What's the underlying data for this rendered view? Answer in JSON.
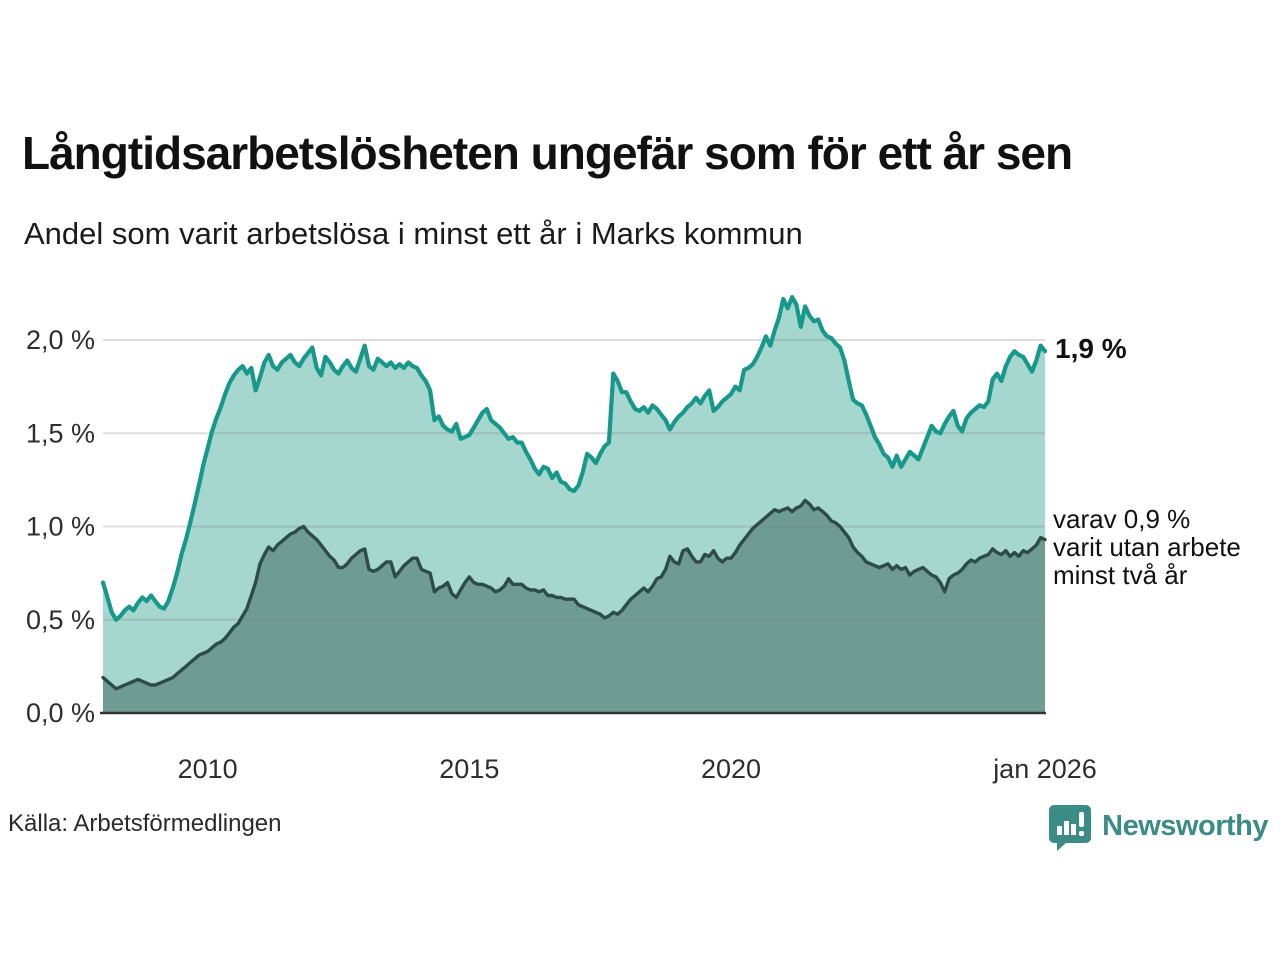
{
  "title": "Långtidsarbetslösheten ungefär som för ett år sen",
  "subtitle": "Andel som varit arbetslösa i minst ett år i Marks kommun",
  "source": "Källa: Arbetsförmedlingen",
  "branding": {
    "name": "Newsworthy",
    "color": "#3b8c84"
  },
  "annotations": {
    "latest_label": "1,9 %",
    "secondary_line1": "varav 0,9 %",
    "secondary_line2": "varit utan arbete",
    "secondary_line3": "minst två år"
  },
  "chart_data": {
    "type": "area",
    "frequency": "monthly",
    "start_month": "2008-01",
    "end_month": "2026-01",
    "x_ticks": [
      {
        "label": "2010",
        "t": 2010
      },
      {
        "label": "2015",
        "t": 2015
      },
      {
        "label": "2020",
        "t": 2020
      },
      {
        "label": "jan 2026",
        "t": 2026
      }
    ],
    "y_ticks": [
      {
        "label": "2,0 %",
        "v": 2.0
      },
      {
        "label": "1,5 %",
        "v": 1.5
      },
      {
        "label": "1,0 %",
        "v": 1.0
      },
      {
        "label": "0,5 %",
        "v": 0.5
      },
      {
        "label": "0,0 %",
        "v": 0.0
      }
    ],
    "ylim": [
      0,
      2.35
    ],
    "grid": true,
    "series": [
      {
        "name": "Arbetslösa minst ett år",
        "line_color": "#17988a",
        "fill_color": "#a6d7cf",
        "latest_value": 1.9,
        "values": [
          0.7,
          0.62,
          0.54,
          0.5,
          0.52,
          0.55,
          0.57,
          0.55,
          0.59,
          0.62,
          0.6,
          0.63,
          0.6,
          0.57,
          0.56,
          0.6,
          0.67,
          0.75,
          0.85,
          0.93,
          1.02,
          1.12,
          1.22,
          1.33,
          1.42,
          1.51,
          1.58,
          1.64,
          1.71,
          1.77,
          1.81,
          1.84,
          1.86,
          1.82,
          1.85,
          1.73,
          1.8,
          1.88,
          1.92,
          1.86,
          1.84,
          1.88,
          1.9,
          1.92,
          1.88,
          1.86,
          1.9,
          1.93,
          1.96,
          1.85,
          1.81,
          1.91,
          1.88,
          1.84,
          1.82,
          1.86,
          1.89,
          1.85,
          1.83,
          1.9,
          1.97,
          1.86,
          1.84,
          1.9,
          1.88,
          1.86,
          1.88,
          1.85,
          1.87,
          1.85,
          1.88,
          1.86,
          1.85,
          1.81,
          1.78,
          1.73,
          1.57,
          1.59,
          1.54,
          1.52,
          1.51,
          1.55,
          1.47,
          1.48,
          1.49,
          1.53,
          1.57,
          1.61,
          1.63,
          1.57,
          1.55,
          1.53,
          1.5,
          1.47,
          1.48,
          1.45,
          1.45,
          1.4,
          1.36,
          1.31,
          1.28,
          1.32,
          1.31,
          1.26,
          1.29,
          1.24,
          1.23,
          1.2,
          1.19,
          1.22,
          1.29,
          1.39,
          1.37,
          1.34,
          1.39,
          1.43,
          1.45,
          1.82,
          1.78,
          1.72,
          1.72,
          1.67,
          1.63,
          1.62,
          1.64,
          1.61,
          1.65,
          1.63,
          1.6,
          1.57,
          1.52,
          1.56,
          1.59,
          1.61,
          1.64,
          1.66,
          1.69,
          1.66,
          1.7,
          1.73,
          1.62,
          1.64,
          1.67,
          1.69,
          1.71,
          1.75,
          1.73,
          1.84,
          1.85,
          1.87,
          1.91,
          1.96,
          2.02,
          1.97,
          2.05,
          2.12,
          2.22,
          2.17,
          2.23,
          2.19,
          2.07,
          2.18,
          2.13,
          2.1,
          2.11,
          2.05,
          2.02,
          2.01,
          1.98,
          1.96,
          1.89,
          1.78,
          1.68,
          1.66,
          1.65,
          1.6,
          1.54,
          1.48,
          1.44,
          1.39,
          1.37,
          1.32,
          1.38,
          1.32,
          1.36,
          1.4,
          1.38,
          1.36,
          1.42,
          1.48,
          1.54,
          1.51,
          1.5,
          1.55,
          1.59,
          1.62,
          1.54,
          1.51,
          1.58,
          1.61,
          1.63,
          1.65,
          1.64,
          1.67,
          1.79,
          1.82,
          1.78,
          1.86,
          1.91,
          1.94,
          1.92,
          1.91,
          1.87,
          1.83,
          1.89,
          1.97,
          1.94
        ]
      },
      {
        "name": "Utan arbete minst två år",
        "line_color": "#2e4c47",
        "fill_color": "#6e9c92",
        "latest_value": 0.9,
        "values": [
          0.19,
          0.17,
          0.15,
          0.13,
          0.14,
          0.15,
          0.16,
          0.17,
          0.18,
          0.17,
          0.16,
          0.15,
          0.15,
          0.16,
          0.17,
          0.18,
          0.19,
          0.21,
          0.23,
          0.25,
          0.27,
          0.29,
          0.31,
          0.32,
          0.33,
          0.35,
          0.37,
          0.38,
          0.4,
          0.43,
          0.46,
          0.48,
          0.52,
          0.56,
          0.63,
          0.7,
          0.8,
          0.85,
          0.89,
          0.87,
          0.9,
          0.92,
          0.94,
          0.96,
          0.97,
          0.99,
          1.0,
          0.97,
          0.95,
          0.93,
          0.9,
          0.87,
          0.84,
          0.82,
          0.78,
          0.78,
          0.8,
          0.83,
          0.85,
          0.87,
          0.88,
          0.77,
          0.76,
          0.77,
          0.79,
          0.81,
          0.81,
          0.73,
          0.76,
          0.79,
          0.81,
          0.83,
          0.83,
          0.77,
          0.76,
          0.75,
          0.65,
          0.67,
          0.68,
          0.7,
          0.64,
          0.62,
          0.66,
          0.7,
          0.73,
          0.7,
          0.69,
          0.69,
          0.68,
          0.67,
          0.65,
          0.66,
          0.68,
          0.72,
          0.69,
          0.69,
          0.69,
          0.67,
          0.66,
          0.66,
          0.65,
          0.66,
          0.63,
          0.63,
          0.62,
          0.62,
          0.61,
          0.61,
          0.61,
          0.58,
          0.57,
          0.56,
          0.55,
          0.54,
          0.53,
          0.51,
          0.52,
          0.54,
          0.53,
          0.55,
          0.58,
          0.61,
          0.63,
          0.65,
          0.67,
          0.65,
          0.68,
          0.72,
          0.73,
          0.77,
          0.84,
          0.81,
          0.8,
          0.87,
          0.88,
          0.84,
          0.81,
          0.81,
          0.85,
          0.84,
          0.87,
          0.83,
          0.81,
          0.83,
          0.83,
          0.86,
          0.9,
          0.93,
          0.96,
          0.99,
          1.01,
          1.03,
          1.05,
          1.07,
          1.09,
          1.08,
          1.09,
          1.1,
          1.08,
          1.1,
          1.11,
          1.14,
          1.12,
          1.09,
          1.1,
          1.08,
          1.06,
          1.03,
          1.02,
          1.0,
          0.97,
          0.94,
          0.89,
          0.86,
          0.84,
          0.81,
          0.8,
          0.79,
          0.78,
          0.79,
          0.8,
          0.77,
          0.79,
          0.77,
          0.78,
          0.74,
          0.76,
          0.77,
          0.78,
          0.76,
          0.74,
          0.73,
          0.7,
          0.65,
          0.72,
          0.74,
          0.75,
          0.77,
          0.8,
          0.82,
          0.81,
          0.83,
          0.84,
          0.85,
          0.88,
          0.86,
          0.85,
          0.87,
          0.84,
          0.86,
          0.84,
          0.87,
          0.86,
          0.88,
          0.9,
          0.94,
          0.93
        ]
      }
    ]
  }
}
